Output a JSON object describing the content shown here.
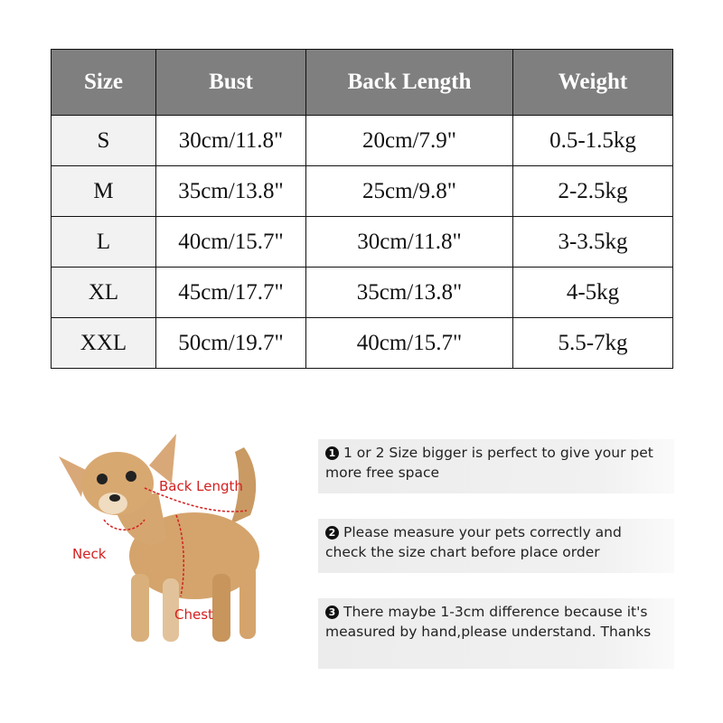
{
  "table": {
    "headers": [
      "Size",
      "Bust",
      "Back Length",
      "Weight"
    ],
    "rows": [
      [
        "S",
        "30cm/11.8\"",
        "20cm/7.9\"",
        "0.5-1.5kg"
      ],
      [
        "M",
        "35cm/13.8\"",
        "25cm/9.8\"",
        "2-2.5kg"
      ],
      [
        "L",
        "40cm/15.7\"",
        "30cm/11.8\"",
        "3-3.5kg"
      ],
      [
        "XL",
        "45cm/17.7\"",
        "35cm/13.8\"",
        "4-5kg"
      ],
      [
        "XXL",
        "50cm/19.7\"",
        "40cm/15.7\"",
        "5.5-7kg"
      ]
    ]
  },
  "diagram": {
    "back_length": "Back Length",
    "neck": "Neck",
    "chest": "Chest"
  },
  "notes": [
    {
      "num": "1",
      "text": "1 or 2 Size bigger is perfect to give your pet more free space"
    },
    {
      "num": "2",
      "text": "Please measure your pets correctly and check the size chart before place order"
    },
    {
      "num": "3",
      "text": "There maybe 1-3cm difference because it's measured by hand,please understand. Thanks"
    }
  ],
  "colors": {
    "header_bg": "#7f7f7f",
    "size_col_bg": "#f2f2f2",
    "label_red": "#d42020"
  }
}
